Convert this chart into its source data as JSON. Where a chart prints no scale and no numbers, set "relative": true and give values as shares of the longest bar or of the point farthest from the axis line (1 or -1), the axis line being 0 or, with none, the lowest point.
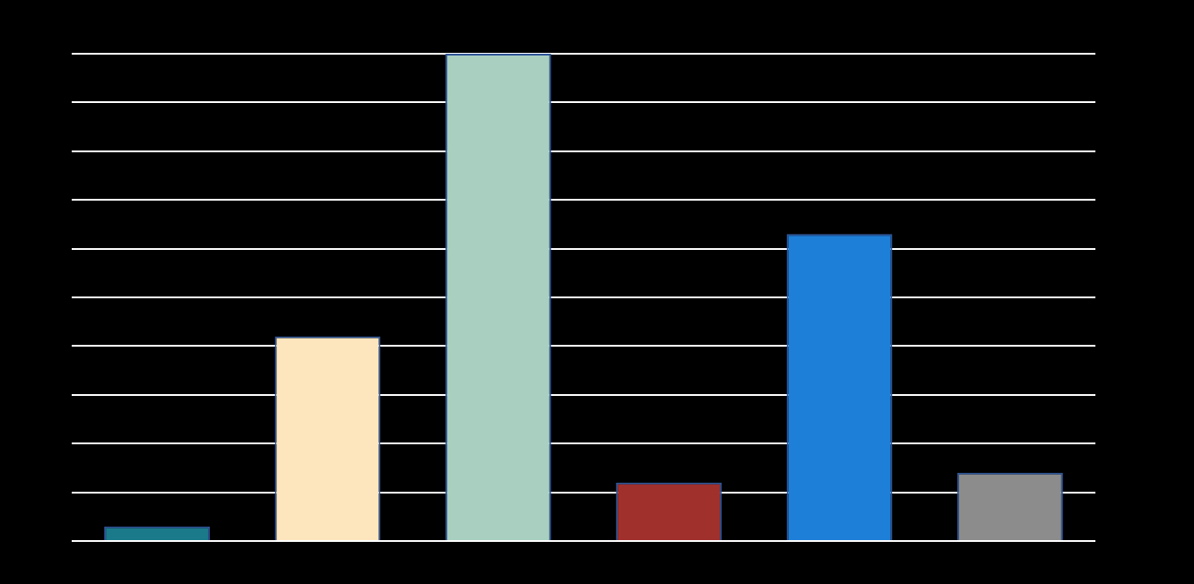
{
  "chart_data": {
    "type": "bar",
    "relative": true,
    "grid": "y",
    "categories": [
      null,
      null,
      null,
      null,
      null,
      null
    ],
    "values": [
      0.03,
      0.42,
      1,
      0.12,
      0.63,
      0.14
    ],
    "colors": [
      "#1b7a8a",
      "#fde6bd",
      "#a8cfc0",
      "#a0302c",
      "#1e7fd8",
      "#8c8c8c"
    ]
  }
}
